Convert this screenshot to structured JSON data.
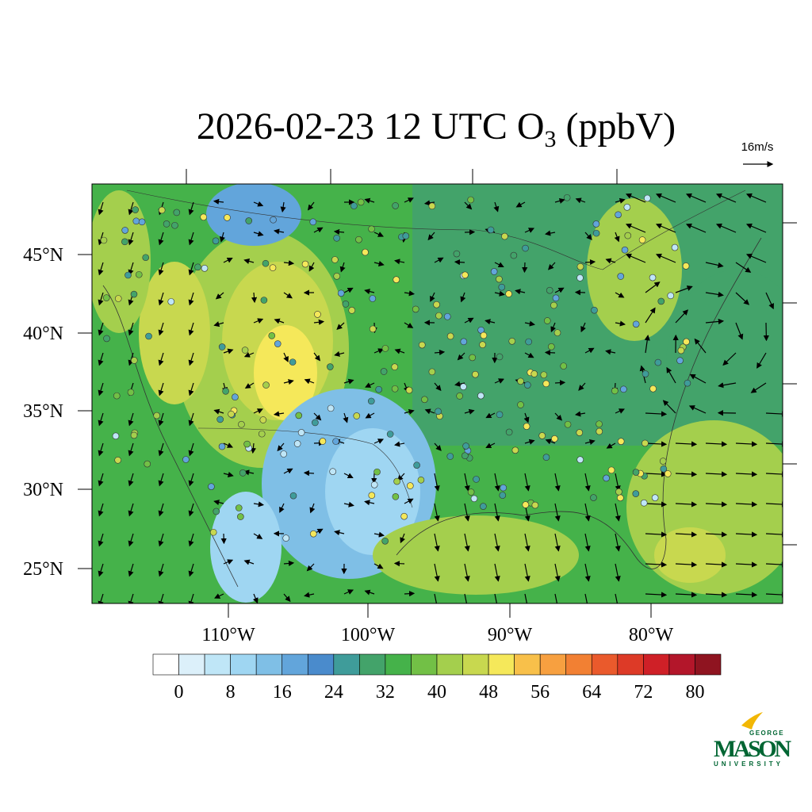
{
  "title": {
    "main": "2026-02-23 12 UTC O",
    "subscript": "3",
    "unit": "(ppbV)"
  },
  "reference_vector": {
    "label": "16m/s"
  },
  "map": {
    "lat_labels": [
      "45°N",
      "40°N",
      "35°N",
      "30°N",
      "25°N"
    ],
    "lon_labels": [
      "110°W",
      "100°W",
      "90°W",
      "80°W"
    ]
  },
  "colorbar": {
    "range": [
      -4,
      84
    ],
    "levels": [
      0,
      8,
      16,
      24,
      32,
      40,
      48,
      56,
      64,
      72,
      80
    ],
    "colors": [
      "#ffffff",
      "#dcf0fa",
      "#bfe6f7",
      "#9fd6f2",
      "#7fbfe6",
      "#62a5db",
      "#4a8bcc",
      "#3f9c9a",
      "#43a36a",
      "#45b24a",
      "#72c046",
      "#a4cf4d",
      "#c8d84f",
      "#f5e85a",
      "#f8c04a",
      "#f7a040",
      "#f28033",
      "#ea5a2c",
      "#dd3a27",
      "#cf2027",
      "#b3162a",
      "#8f1420"
    ]
  },
  "logo": {
    "top": "GEORGE",
    "main": "MASON",
    "bottom": "UNIVERSITY"
  }
}
